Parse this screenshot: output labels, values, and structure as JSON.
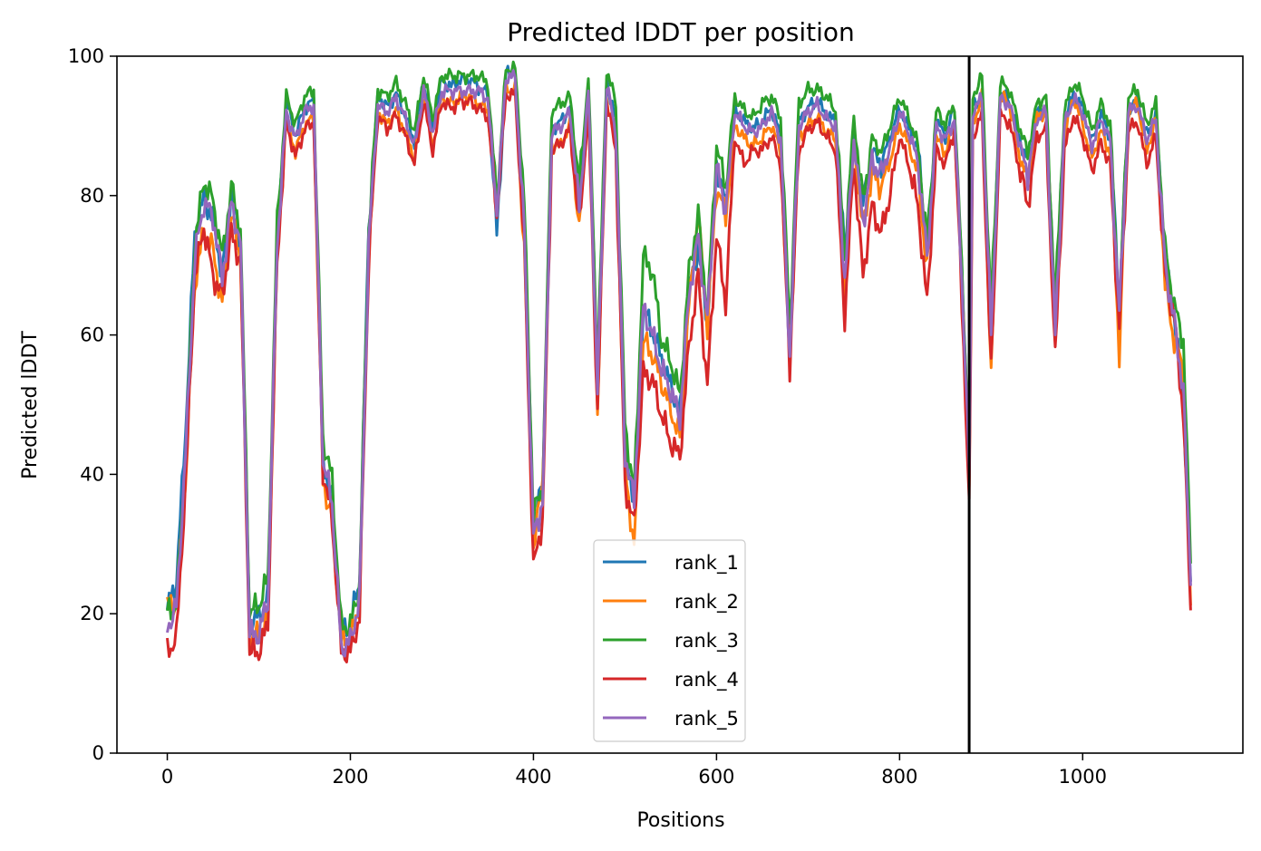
{
  "chart_data": {
    "type": "line",
    "title": "Predicted lDDT per position",
    "xlabel": "Positions",
    "ylabel": "Predicted lDDT",
    "xlim": [
      -55,
      1175
    ],
    "ylim": [
      0,
      100
    ],
    "xticks": [
      0,
      200,
      400,
      600,
      800,
      1000
    ],
    "yticks": [
      0,
      20,
      40,
      60,
      80,
      100
    ],
    "grid": false,
    "legend_position": "lower center",
    "chain_break": 876,
    "series": [
      {
        "name": "rank_1",
        "color": "#1f77b4",
        "y_offset": 0.6,
        "x": [
          0,
          10,
          20,
          30,
          40,
          50,
          60,
          70,
          80,
          90,
          100,
          110,
          120,
          130,
          140,
          150,
          160,
          170,
          180,
          190,
          200,
          210,
          220,
          230,
          240,
          250,
          260,
          270,
          280,
          290,
          300,
          310,
          320,
          330,
          340,
          350,
          360,
          370,
          380,
          390,
          400,
          410,
          420,
          430,
          440,
          450,
          460,
          470,
          480,
          490,
          500,
          510,
          520,
          530,
          540,
          550,
          560,
          570,
          580,
          590,
          600,
          610,
          620,
          630,
          640,
          650,
          660,
          670,
          680,
          690,
          700,
          710,
          720,
          730,
          740,
          750,
          760,
          770,
          780,
          790,
          800,
          810,
          820,
          830,
          840,
          850,
          860,
          870,
          876,
          880,
          890,
          900,
          910,
          920,
          930,
          940,
          950,
          960,
          970,
          980,
          990,
          1000,
          1010,
          1020,
          1030,
          1040,
          1050,
          1060,
          1070,
          1080,
          1090,
          1100,
          1110,
          1118
        ],
        "y": [
          20,
          24,
          46,
          74,
          79,
          76,
          68,
          80,
          72,
          18,
          19,
          22,
          73,
          93,
          88,
          92,
          93,
          41,
          36,
          16,
          18,
          24,
          75,
          94,
          92,
          94,
          91,
          87,
          96,
          89,
          96,
          95,
          96,
          96,
          95,
          94,
          74,
          97,
          97,
          75,
          32,
          38,
          89,
          90,
          92,
          79,
          95,
          52,
          96,
          90,
          43,
          36,
          63,
          60,
          56,
          52,
          48,
          66,
          72,
          61,
          84,
          78,
          92,
          90,
          89,
          90,
          92,
          88,
          58,
          90,
          92,
          93,
          91,
          90,
          71,
          89,
          78,
          86,
          84,
          88,
          92,
          89,
          86,
          72,
          90,
          88,
          92,
          62,
          40,
          92,
          94,
          60,
          94,
          93,
          88,
          84,
          91,
          92,
          62,
          90,
          94,
          92,
          87,
          91,
          88,
          64,
          92,
          93,
          88,
          91,
          70,
          62,
          50,
          24
        ]
      },
      {
        "name": "rank_2",
        "color": "#ff7f0e",
        "y_offset": -0.8,
        "x": [
          0,
          10,
          20,
          30,
          40,
          50,
          60,
          70,
          80,
          90,
          100,
          110,
          120,
          130,
          140,
          150,
          160,
          170,
          180,
          190,
          200,
          210,
          220,
          230,
          240,
          250,
          260,
          270,
          280,
          290,
          300,
          310,
          320,
          330,
          340,
          350,
          360,
          370,
          380,
          390,
          400,
          410,
          420,
          430,
          440,
          450,
          460,
          470,
          480,
          490,
          500,
          510,
          520,
          530,
          540,
          550,
          560,
          570,
          580,
          590,
          600,
          610,
          620,
          630,
          640,
          650,
          660,
          670,
          680,
          690,
          700,
          710,
          720,
          730,
          740,
          750,
          760,
          770,
          780,
          790,
          800,
          810,
          820,
          830,
          840,
          850,
          860,
          870,
          876,
          880,
          890,
          900,
          910,
          920,
          930,
          940,
          950,
          960,
          970,
          980,
          990,
          1000,
          1010,
          1020,
          1030,
          1040,
          1050,
          1060,
          1070,
          1080,
          1090,
          1100,
          1110,
          1118
        ],
        "y": [
          22,
          22,
          40,
          68,
          76,
          73,
          65,
          78,
          72,
          17,
          18,
          20,
          72,
          92,
          87,
          91,
          92,
          40,
          34,
          17,
          17,
          22,
          73,
          93,
          91,
          93,
          90,
          86,
          95,
          88,
          95,
          94,
          95,
          95,
          94,
          93,
          80,
          96,
          96,
          73,
          30,
          40,
          88,
          88,
          91,
          76,
          94,
          50,
          95,
          88,
          42,
          30,
          60,
          58,
          54,
          50,
          46,
          65,
          78,
          62,
          82,
          78,
          91,
          89,
          88,
          89,
          91,
          87,
          57,
          89,
          91,
          92,
          90,
          89,
          66,
          88,
          76,
          84,
          82,
          86,
          91,
          88,
          84,
          70,
          89,
          87,
          91,
          62,
          39,
          91,
          95,
          55,
          95,
          94,
          87,
          83,
          92,
          93,
          61,
          89,
          95,
          91,
          86,
          90,
          87,
          58,
          93,
          94,
          87,
          92,
          68,
          60,
          56,
          22
        ]
      },
      {
        "name": "rank_3",
        "color": "#2ca02c",
        "y_offset": 1.2,
        "x": [
          0,
          10,
          20,
          30,
          40,
          50,
          60,
          70,
          80,
          90,
          100,
          110,
          120,
          130,
          140,
          150,
          160,
          170,
          180,
          190,
          200,
          210,
          220,
          230,
          240,
          250,
          260,
          270,
          280,
          290,
          300,
          310,
          320,
          330,
          340,
          350,
          360,
          370,
          380,
          390,
          400,
          410,
          420,
          430,
          440,
          450,
          460,
          470,
          480,
          490,
          500,
          510,
          520,
          530,
          540,
          550,
          560,
          570,
          580,
          590,
          600,
          610,
          620,
          630,
          640,
          650,
          660,
          670,
          680,
          690,
          700,
          710,
          720,
          730,
          740,
          750,
          760,
          770,
          780,
          790,
          800,
          810,
          820,
          830,
          840,
          850,
          860,
          870,
          876,
          880,
          890,
          900,
          910,
          920,
          930,
          940,
          950,
          960,
          970,
          980,
          990,
          1000,
          1010,
          1020,
          1030,
          1040,
          1050,
          1060,
          1070,
          1080,
          1090,
          1100,
          1110,
          1118
        ],
        "y": [
          19,
          20,
          42,
          72,
          81,
          78,
          70,
          80,
          74,
          19,
          20,
          24,
          75,
          93,
          89,
          93,
          94,
          44,
          38,
          17,
          17,
          23,
          74,
          94,
          93,
          95,
          92,
          88,
          96,
          90,
          96,
          96,
          96,
          96,
          96,
          95,
          78,
          97,
          97,
          78,
          33,
          37,
          91,
          92,
          93,
          80,
          96,
          54,
          97,
          92,
          46,
          36,
          70,
          68,
          58,
          55,
          50,
          68,
          76,
          62,
          86,
          80,
          93,
          91,
          90,
          92,
          93,
          90,
          60,
          92,
          94,
          94,
          93,
          91,
          70,
          90,
          78,
          87,
          85,
          89,
          93,
          90,
          86,
          72,
          91,
          89,
          92,
          62,
          42,
          93,
          96,
          62,
          95,
          94,
          89,
          85,
          92,
          93,
          63,
          91,
          95,
          93,
          88,
          92,
          89,
          62,
          93,
          94,
          89,
          92,
          71,
          63,
          58,
          26
        ]
      },
      {
        "name": "rank_4",
        "color": "#d62728",
        "y_offset": -1.5,
        "x": [
          0,
          10,
          20,
          30,
          40,
          50,
          60,
          70,
          80,
          90,
          100,
          110,
          120,
          130,
          140,
          150,
          160,
          170,
          180,
          190,
          200,
          210,
          220,
          230,
          240,
          250,
          260,
          270,
          280,
          290,
          300,
          310,
          320,
          330,
          340,
          350,
          360,
          370,
          380,
          390,
          400,
          410,
          420,
          430,
          440,
          450,
          460,
          470,
          480,
          490,
          500,
          510,
          520,
          530,
          540,
          550,
          560,
          570,
          580,
          590,
          600,
          610,
          620,
          630,
          640,
          650,
          660,
          670,
          680,
          690,
          700,
          710,
          720,
          730,
          740,
          750,
          760,
          770,
          780,
          790,
          800,
          810,
          820,
          830,
          840,
          850,
          860,
          870,
          876,
          880,
          890,
          900,
          910,
          920,
          930,
          940,
          950,
          960,
          970,
          980,
          990,
          1000,
          1010,
          1020,
          1030,
          1040,
          1050,
          1060,
          1070,
          1080,
          1090,
          1100,
          1110,
          1118
        ],
        "y": [
          16,
          18,
          40,
          70,
          77,
          70,
          67,
          76,
          72,
          16,
          16,
          20,
          72,
          92,
          87,
          91,
          92,
          42,
          35,
          16,
          16,
          21,
          72,
          93,
          91,
          93,
          90,
          86,
          95,
          88,
          95,
          94,
          95,
          95,
          94,
          93,
          79,
          96,
          96,
          74,
          28,
          35,
          88,
          89,
          91,
          77,
          94,
          50,
          95,
          88,
          40,
          34,
          56,
          55,
          50,
          46,
          44,
          60,
          70,
          54,
          76,
          66,
          90,
          86,
          88,
          88,
          90,
          86,
          57,
          88,
          91,
          92,
          90,
          88,
          64,
          86,
          70,
          80,
          76,
          82,
          90,
          86,
          80,
          66,
          88,
          86,
          91,
          60,
          36,
          90,
          93,
          56,
          93,
          92,
          86,
          80,
          90,
          91,
          58,
          88,
          93,
          90,
          85,
          89,
          86,
          62,
          91,
          92,
          86,
          90,
          70,
          64,
          50,
          22
        ]
      },
      {
        "name": "rank_5",
        "color": "#9467bd",
        "y_offset": 0,
        "x": [
          0,
          10,
          20,
          30,
          40,
          50,
          60,
          70,
          80,
          90,
          100,
          110,
          120,
          130,
          140,
          150,
          160,
          170,
          180,
          190,
          200,
          210,
          220,
          230,
          240,
          250,
          260,
          270,
          280,
          290,
          300,
          310,
          320,
          330,
          340,
          350,
          360,
          370,
          380,
          390,
          400,
          410,
          420,
          430,
          440,
          450,
          460,
          470,
          480,
          490,
          500,
          510,
          520,
          530,
          540,
          550,
          560,
          570,
          580,
          590,
          600,
          610,
          620,
          630,
          640,
          650,
          660,
          670,
          680,
          690,
          700,
          710,
          720,
          730,
          740,
          750,
          760,
          770,
          780,
          790,
          800,
          810,
          820,
          830,
          840,
          850,
          860,
          870,
          876,
          880,
          890,
          900,
          910,
          920,
          930,
          940,
          950,
          960,
          970,
          980,
          990,
          1000,
          1010,
          1020,
          1030,
          1040,
          1050,
          1060,
          1070,
          1080,
          1090,
          1100,
          1110,
          1118
        ],
        "y": [
          18,
          21,
          43,
          71,
          79,
          77,
          68,
          79,
          73,
          17,
          17,
          22,
          73,
          92,
          88,
          92,
          93,
          42,
          36,
          15,
          16,
          22,
          73,
          93,
          92,
          94,
          91,
          87,
          95,
          89,
          95,
          95,
          95,
          95,
          95,
          94,
          78,
          97,
          97,
          75,
          31,
          36,
          89,
          90,
          92,
          78,
          95,
          52,
          96,
          89,
          43,
          36,
          64,
          60,
          55,
          52,
          48,
          66,
          74,
          62,
          84,
          78,
          92,
          90,
          89,
          90,
          92,
          88,
          57,
          90,
          92,
          93,
          91,
          90,
          68,
          88,
          76,
          85,
          83,
          87,
          92,
          89,
          85,
          71,
          90,
          88,
          91,
          62,
          40,
          92,
          94,
          60,
          94,
          93,
          88,
          83,
          91,
          92,
          60,
          90,
          94,
          92,
          87,
          91,
          88,
          63,
          92,
          93,
          88,
          91,
          70,
          62,
          52,
          24
        ]
      }
    ]
  }
}
